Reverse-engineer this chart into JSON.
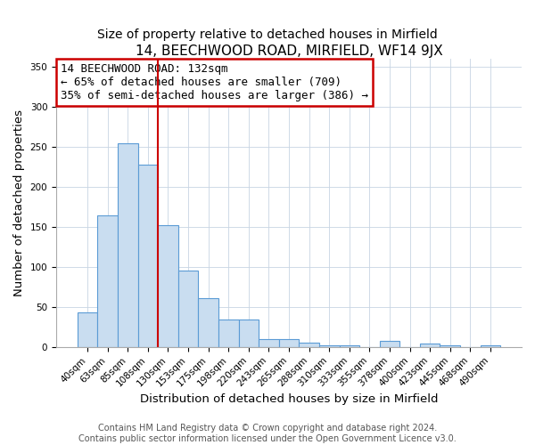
{
  "title": "14, BEECHWOOD ROAD, MIRFIELD, WF14 9JX",
  "subtitle": "Size of property relative to detached houses in Mirfield",
  "xlabel": "Distribution of detached houses by size in Mirfield",
  "ylabel": "Number of detached properties",
  "bar_labels": [
    "40sqm",
    "63sqm",
    "85sqm",
    "108sqm",
    "130sqm",
    "153sqm",
    "175sqm",
    "198sqm",
    "220sqm",
    "243sqm",
    "265sqm",
    "288sqm",
    "310sqm",
    "333sqm",
    "355sqm",
    "378sqm",
    "400sqm",
    "423sqm",
    "445sqm",
    "468sqm",
    "490sqm"
  ],
  "bar_values": [
    43,
    165,
    254,
    228,
    152,
    95,
    61,
    34,
    34,
    10,
    10,
    5,
    2,
    2,
    0,
    8,
    0,
    4,
    2,
    0,
    2
  ],
  "bar_color": "#c9ddf0",
  "bar_edge_color": "#5b9bd5",
  "vline_color": "#cc0000",
  "vline_pos": 3.5,
  "annotation_title": "14 BEECHWOOD ROAD: 132sqm",
  "annotation_line1": "← 65% of detached houses are smaller (709)",
  "annotation_line2": "35% of semi-detached houses are larger (386) →",
  "annotation_box_color": "#cc0000",
  "ylim": [
    0,
    360
  ],
  "yticks": [
    0,
    50,
    100,
    150,
    200,
    250,
    300,
    350
  ],
  "footer1": "Contains HM Land Registry data © Crown copyright and database right 2024.",
  "footer2": "Contains public sector information licensed under the Open Government Licence v3.0.",
  "title_fontsize": 11,
  "subtitle_fontsize": 10,
  "axis_label_fontsize": 9.5,
  "tick_fontsize": 7.5,
  "annotation_fontsize": 9,
  "footer_fontsize": 7
}
